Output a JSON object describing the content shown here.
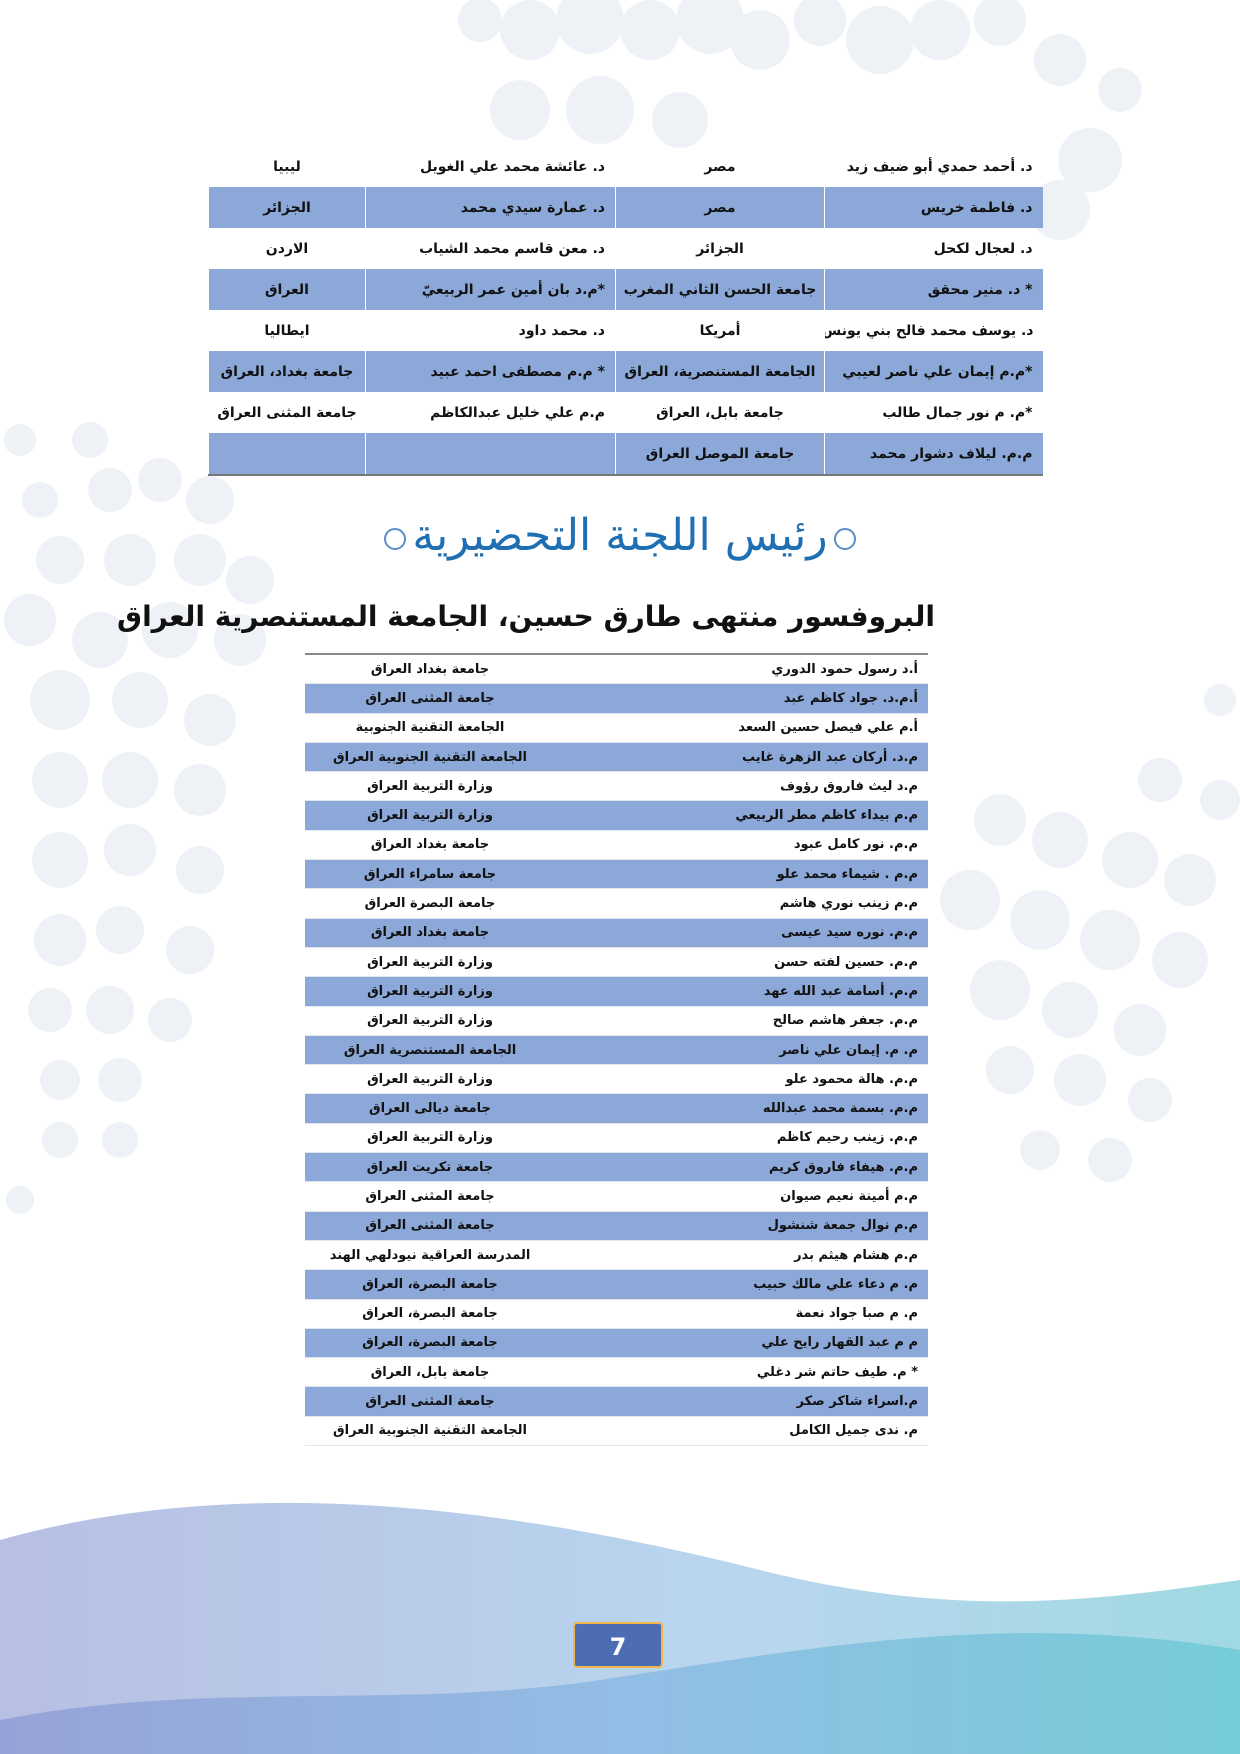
{
  "top_table": [
    [
      "د. أحمد حمدي أبو ضيف زيد",
      "مصر",
      "د. عائشة محمد علي الغويل",
      "ليبيا"
    ],
    [
      "د. فاطمة خريس",
      "مصر",
      "د. عمارة سيدي محمد",
      "الجزائر"
    ],
    [
      "د. لعجال لكحل",
      "الجزائر",
      "د. معن قاسم محمد الشياب",
      "الاردن"
    ],
    [
      "* د. منير محقق",
      "جامعة الحسن الثاني المغرب",
      "*م.د بان أمين عمر الربيعيّ",
      "العراق"
    ],
    [
      "د. يوسف محمد فالح بني يونس",
      "أمريكا",
      "د. محمد داود",
      "ايطاليا"
    ],
    [
      "*م.م إيمان علي ناصر لعيبي",
      "الجامعة المستنصرية، العراق",
      "* م.م مصطفى احمد عبيد",
      "جامعة بغداد، العراق"
    ],
    [
      "*م. م نور جمال طالب",
      "جامعة بابل، العراق",
      "م.م علي خليل عبدالكاظم",
      "جامعة المثنى العراق"
    ],
    [
      "م.م. ليلاف دشوار محمد",
      "جامعة الموصل العراق",
      "",
      ""
    ]
  ],
  "section_title": "رئيس اللجنة التحضيرية",
  "chair": "البروفسور منتهى طارق حسين، الجامعة المستنصرية العراق",
  "committee": [
    [
      "أ.د رسول حمود الدوري",
      "جامعة بغداد العراق"
    ],
    [
      "أ.م.د. جواد كاظم عبد",
      "جامعة المثنى العراق"
    ],
    [
      "أ.م علي فيصل حسين السعد",
      "الجامعة التقنية الجنوبية"
    ],
    [
      "م.د. أركان عبد الزهرة غايب",
      "الجامعة التقنية الجنوبية العراق"
    ],
    [
      "م.د  ليث فاروق رؤوف",
      "وزارة التربية العراق"
    ],
    [
      "م.م بيداء كاظم مطر الربيعي",
      "وزارة التربية العراق"
    ],
    [
      "م.م. نور كامل عبود",
      "جامعة بغداد العراق"
    ],
    [
      "م.م . شيماء محمد علو",
      "جامعة سامراء العراق"
    ],
    [
      "م.م زينب نوري هاشم",
      "جامعة البصرة  العراق"
    ],
    [
      "م.م. نوره سيد عيسى",
      "جامعة بغداد العراق"
    ],
    [
      "م.م. حسين لفته حسن",
      "وزارة التربية العراق"
    ],
    [
      "م.م. أسامة عبد الله عهد",
      "وزارة التربية العراق"
    ],
    [
      "م.م. جعفر هاشم صالح",
      "وزارة التربية العراق"
    ],
    [
      "م. م. إيمان علي ناصر",
      "الجامعة المستنصرية العراق"
    ],
    [
      "م.م. هالة محمود علو",
      "وزارة التربية العراق"
    ],
    [
      "م.م. بسمة محمد عبدالله",
      "جامعة ديالى العراق"
    ],
    [
      "م.م. زينب رحيم كاظم",
      "وزارة التربية العراق"
    ],
    [
      "م.م. هيفاء فاروق كريم",
      "جامعة تكريت العراق"
    ],
    [
      "م.م    أمينة نعيم صيوان",
      "جامعة المثنى العراق"
    ],
    [
      "م.م نوال جمعة شنشول",
      "جامعة المثنى العراق"
    ],
    [
      "م.م هشام هيثم بدر",
      "المدرسة العراقية نيودلهي الهند"
    ],
    [
      "م. م  دعاء علي مالك حبيب",
      "جامعة البصرة، العراق"
    ],
    [
      "م. م صبا جواد نعمة",
      "جامعة البصرة، العراق"
    ],
    [
      "م م عبد القهار رايح علي",
      "جامعة البصرة، العراق"
    ],
    [
      "* م. طيف حاتم شر دغلي",
      "جامعة بابل، العراق"
    ],
    [
      "م.اسراء شاكر  صكر",
      "جامعة المثنى العراق"
    ],
    [
      "م. ندى جميل الكامل",
      "الجامعة التقنية الجنوبية العراق"
    ]
  ],
  "page_number": "7",
  "colors": {
    "row_alt": "#8ba8d8",
    "title": "#1f6fb3",
    "page_box": "#4c6db3",
    "page_border": "#f0b64a"
  }
}
